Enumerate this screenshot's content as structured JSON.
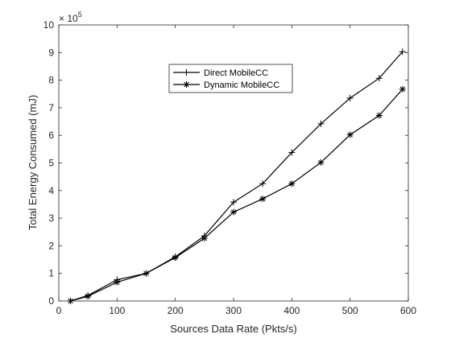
{
  "chart_data": {
    "type": "line",
    "title": "",
    "xlabel": "Sources Data Rate (Pkts/s)",
    "ylabel": "Total Energy Consumed (mJ)",
    "xlim": [
      0,
      600
    ],
    "ylim": [
      0,
      10
    ],
    "x_ticks": [
      0,
      100,
      200,
      300,
      400,
      500,
      600
    ],
    "y_ticks": [
      0,
      1,
      2,
      3,
      4,
      5,
      6,
      7,
      8,
      9,
      10
    ],
    "y_multiplier_base": "× 10",
    "y_multiplier_exponent": "5",
    "grid": false,
    "legend_position": "top-center",
    "x": [
      20,
      50,
      100,
      150,
      200,
      250,
      300,
      350,
      400,
      450,
      500,
      550,
      590
    ],
    "series": [
      {
        "name": "Direct MobileCC",
        "marker": "plus",
        "color": "#000000",
        "values": [
          0.0,
          0.2,
          0.77,
          1.0,
          1.6,
          2.36,
          3.58,
          4.25,
          5.38,
          6.42,
          7.35,
          8.07,
          9.03
        ]
      },
      {
        "name": "Dynamic MobileCC",
        "marker": "star",
        "color": "#000000",
        "values": [
          0.0,
          0.17,
          0.68,
          1.0,
          1.57,
          2.27,
          3.22,
          3.7,
          4.25,
          5.02,
          6.02,
          6.72,
          7.67
        ]
      }
    ]
  }
}
